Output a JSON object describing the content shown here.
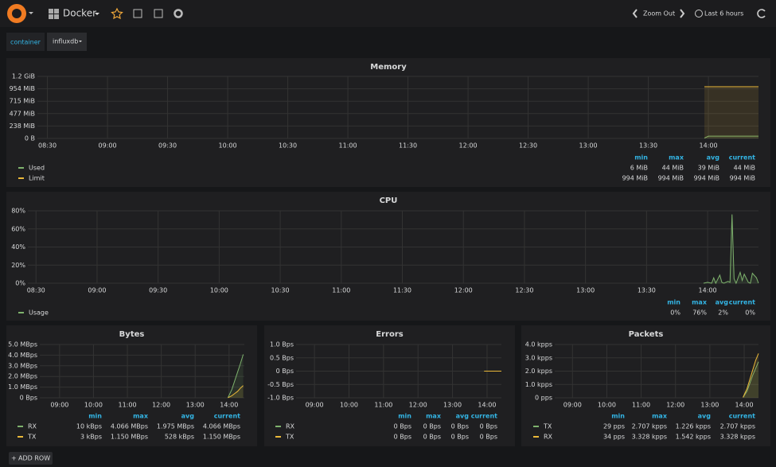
{
  "navbar": {
    "dashboard_title": "Docker",
    "zoom": "Zoom Out",
    "time_range": "Last 6 hours"
  },
  "template": {
    "label": "container",
    "value": "influxdb"
  },
  "add_row": "ADD ROW",
  "panels": [
    {
      "title": "Memory",
      "legend_columns": [
        "min",
        "max",
        "avg",
        "current"
      ],
      "xlim": [
        505,
        865
      ],
      "xticks": [
        {
          "value": 510,
          "label": "08:30"
        },
        {
          "value": 540,
          "label": "09:00"
        },
        {
          "value": 570,
          "label": "09:30"
        },
        {
          "value": 600,
          "label": "10:00"
        },
        {
          "value": 630,
          "label": "10:30"
        },
        {
          "value": 660,
          "label": "11:00"
        },
        {
          "value": 690,
          "label": "11:30"
        },
        {
          "value": 720,
          "label": "12:00"
        },
        {
          "value": 750,
          "label": "12:30"
        },
        {
          "value": 780,
          "label": "13:00"
        },
        {
          "value": 810,
          "label": "13:30"
        },
        {
          "value": 840,
          "label": "14:00"
        }
      ],
      "ylim": [
        0,
        1192
      ],
      "yticks": [
        {
          "value": 0,
          "label": "0 B"
        },
        {
          "value": 238,
          "label": "238 MiB"
        },
        {
          "value": 477,
          "label": "477 MiB"
        },
        {
          "value": 715,
          "label": "715 MiB"
        },
        {
          "value": 954,
          "label": "954 MiB"
        },
        {
          "value": 1192,
          "label": "1.2 GiB"
        }
      ],
      "series": [
        {
          "name": "Used",
          "color": "#7eb26d",
          "x": [
            838,
            840,
            845,
            850,
            855,
            860,
            865
          ],
          "values": [
            6,
            44,
            44,
            44,
            44,
            44,
            44
          ],
          "stats": [
            "6 MiB",
            "44 MiB",
            "39 MiB",
            "44 MiB"
          ]
        },
        {
          "name": "Limit",
          "color": "#eab839",
          "x": [
            838,
            840,
            845,
            850,
            855,
            860,
            865
          ],
          "values": [
            994,
            994,
            994,
            994,
            994,
            994,
            994
          ],
          "stats": [
            "994 MiB",
            "994 MiB",
            "994 MiB",
            "994 MiB"
          ]
        }
      ]
    },
    {
      "title": "CPU",
      "legend_columns": [
        "min",
        "max",
        "avg",
        "current"
      ],
      "xlim": [
        506,
        865
      ],
      "xticks": [
        {
          "value": 510,
          "label": "08:30"
        },
        {
          "value": 540,
          "label": "09:00"
        },
        {
          "value": 570,
          "label": "09:30"
        },
        {
          "value": 600,
          "label": "10:00"
        },
        {
          "value": 630,
          "label": "10:30"
        },
        {
          "value": 660,
          "label": "11:00"
        },
        {
          "value": 690,
          "label": "11:30"
        },
        {
          "value": 720,
          "label": "12:00"
        },
        {
          "value": 750,
          "label": "12:30"
        },
        {
          "value": 780,
          "label": "13:00"
        },
        {
          "value": 810,
          "label": "13:30"
        },
        {
          "value": 840,
          "label": "14:00"
        }
      ],
      "ylim": [
        0,
        80
      ],
      "yticks": [
        {
          "value": 0,
          "label": "0%"
        },
        {
          "value": 20,
          "label": "20%"
        },
        {
          "value": 40,
          "label": "40%"
        },
        {
          "value": 60,
          "label": "60%"
        },
        {
          "value": 80,
          "label": "80%"
        }
      ],
      "series": [
        {
          "name": "Usage",
          "color": "#7eb26d",
          "x": [
            838,
            840,
            842,
            843,
            844,
            846,
            847,
            848,
            850,
            851,
            852,
            853,
            854,
            856,
            857,
            858,
            860,
            861,
            862,
            864,
            865
          ],
          "values": [
            0,
            1,
            0,
            6,
            0,
            9,
            1,
            0,
            2,
            1,
            76,
            5,
            0,
            12,
            3,
            10,
            1,
            0,
            11,
            6,
            0
          ],
          "stats": [
            "0%",
            "76%",
            "2%",
            "0%"
          ]
        }
      ]
    },
    {
      "title": "Bytes",
      "legend_columns": [
        "min",
        "max",
        "avg",
        "current"
      ],
      "xlim": [
        505,
        867
      ],
      "xticks": [
        {
          "value": 540,
          "label": "09:00"
        },
        {
          "value": 600,
          "label": "10:00"
        },
        {
          "value": 660,
          "label": "11:00"
        },
        {
          "value": 720,
          "label": "12:00"
        },
        {
          "value": 780,
          "label": "13:00"
        },
        {
          "value": 840,
          "label": "14:00"
        }
      ],
      "ylim": [
        0,
        5
      ],
      "yticks": [
        {
          "value": 0,
          "label": "0 Bps"
        },
        {
          "value": 1,
          "label": "1.0 MBps"
        },
        {
          "value": 2,
          "label": "2.0 MBps"
        },
        {
          "value": 3,
          "label": "3.0 MBps"
        },
        {
          "value": 4,
          "label": "4.0 MBps"
        },
        {
          "value": 5,
          "label": "5.0 MBps"
        }
      ],
      "series": [
        {
          "name": "RX",
          "color": "#7eb26d",
          "x": [
            838,
            845,
            850,
            855,
            860,
            865
          ],
          "values": [
            0.01,
            0.8,
            1.6,
            2.4,
            3.2,
            4.066
          ],
          "stats": [
            "10 kBps",
            "4.066 MBps",
            "1.975 MBps",
            "4.066 MBps"
          ]
        },
        {
          "name": "TX",
          "color": "#eab839",
          "x": [
            838,
            845,
            850,
            855,
            860,
            865
          ],
          "values": [
            0.003,
            0.2,
            0.4,
            0.6,
            0.9,
            1.15
          ],
          "stats": [
            "3 kBps",
            "1.150 MBps",
            "528 kBps",
            "1.150 MBps"
          ]
        }
      ]
    },
    {
      "title": "Errors",
      "legend_columns": [
        "min",
        "max",
        "avg",
        "current"
      ],
      "xlim": [
        508,
        865
      ],
      "xticks": [
        {
          "value": 540,
          "label": "09:00"
        },
        {
          "value": 600,
          "label": "10:00"
        },
        {
          "value": 660,
          "label": "11:00"
        },
        {
          "value": 720,
          "label": "12:00"
        },
        {
          "value": 780,
          "label": "13:00"
        },
        {
          "value": 840,
          "label": "14:00"
        }
      ],
      "ylim": [
        -1,
        1
      ],
      "yticks": [
        {
          "value": -1,
          "label": "-1.0 Bps"
        },
        {
          "value": -0.5,
          "label": "-0.5 Bps"
        },
        {
          "value": 0,
          "label": "0 Bps"
        },
        {
          "value": 0.5,
          "label": "0.5 Bps"
        },
        {
          "value": 1,
          "label": "1.0 Bps"
        }
      ],
      "series": [
        {
          "name": "RX",
          "color": "#7eb26d",
          "x": [
            835,
            865
          ],
          "values": [
            0,
            0
          ],
          "stats": [
            "0 Bps",
            "0 Bps",
            "0 Bps",
            "0 Bps"
          ]
        },
        {
          "name": "TX",
          "color": "#eab839",
          "x": [
            835,
            865
          ],
          "values": [
            0,
            0
          ],
          "stats": [
            "0 Bps",
            "0 Bps",
            "0 Bps",
            "0 Bps"
          ]
        }
      ]
    },
    {
      "title": "Packets",
      "legend_columns": [
        "min",
        "max",
        "avg",
        "current"
      ],
      "xlim": [
        509,
        865
      ],
      "xticks": [
        {
          "value": 540,
          "label": "09:00"
        },
        {
          "value": 600,
          "label": "10:00"
        },
        {
          "value": 660,
          "label": "11:00"
        },
        {
          "value": 720,
          "label": "12:00"
        },
        {
          "value": 780,
          "label": "13:00"
        },
        {
          "value": 840,
          "label": "14:00"
        }
      ],
      "ylim": [
        0,
        4
      ],
      "yticks": [
        {
          "value": 0,
          "label": "0 pps"
        },
        {
          "value": 1,
          "label": "1.0 kpps"
        },
        {
          "value": 2,
          "label": "2.0 kpps"
        },
        {
          "value": 3,
          "label": "3.0 kpps"
        },
        {
          "value": 4,
          "label": "4.0 kpps"
        }
      ],
      "series": [
        {
          "name": "TX",
          "color": "#7eb26d",
          "x": [
            838,
            845,
            850,
            855,
            860,
            865
          ],
          "values": [
            0.029,
            0.5,
            1.1,
            1.7,
            2.2,
            2.707
          ],
          "stats": [
            "29 pps",
            "2.707 kpps",
            "1.226 kpps",
            "2.707 kpps"
          ]
        },
        {
          "name": "RX",
          "color": "#eab839",
          "x": [
            838,
            845,
            850,
            855,
            860,
            865
          ],
          "values": [
            0.034,
            0.7,
            1.4,
            2.1,
            2.8,
            3.328
          ],
          "stats": [
            "34 pps",
            "3.328 kpps",
            "1.542 kpps",
            "3.328 kpps"
          ]
        }
      ]
    }
  ]
}
